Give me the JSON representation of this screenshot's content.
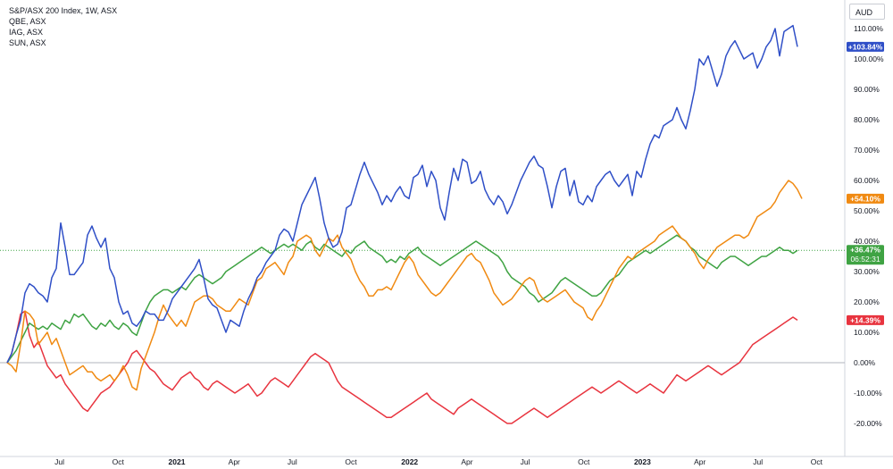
{
  "legend": {
    "items": [
      "S&P/ASX 200 Index, 1W, ASX",
      "QBE, ASX",
      "IAG, ASX",
      "SUN, ASX"
    ]
  },
  "currency": "AUD",
  "chart_data": {
    "type": "line",
    "x_start": "2020-04-10",
    "x_step_days": 7,
    "y_unit": "%",
    "ylim": [
      -25,
      115
    ],
    "grid": false,
    "legend_placement": "top-left",
    "x_ticks": [
      {
        "label": "Jul",
        "date": "2020-07-01",
        "bold": false
      },
      {
        "label": "Oct",
        "date": "2020-10-01",
        "bold": false
      },
      {
        "label": "2021",
        "date": "2021-01-01",
        "bold": true
      },
      {
        "label": "Apr",
        "date": "2021-04-01",
        "bold": false
      },
      {
        "label": "Jul",
        "date": "2021-07-01",
        "bold": false
      },
      {
        "label": "Oct",
        "date": "2021-10-01",
        "bold": false
      },
      {
        "label": "2022",
        "date": "2022-01-01",
        "bold": true
      },
      {
        "label": "Apr",
        "date": "2022-04-01",
        "bold": false
      },
      {
        "label": "Jul",
        "date": "2022-07-01",
        "bold": false
      },
      {
        "label": "Oct",
        "date": "2022-10-01",
        "bold": false
      },
      {
        "label": "2023",
        "date": "2023-01-01",
        "bold": true
      },
      {
        "label": "Apr",
        "date": "2023-04-01",
        "bold": false
      },
      {
        "label": "Jul",
        "date": "2023-07-01",
        "bold": false
      },
      {
        "label": "Oct",
        "date": "2023-10-01",
        "bold": false
      }
    ],
    "y_ticks": [
      {
        "value": 110,
        "label": "110.00%"
      },
      {
        "value": 100,
        "label": "100.00%"
      },
      {
        "value": 90,
        "label": "90.00%"
      },
      {
        "value": 80,
        "label": "80.00%"
      },
      {
        "value": 70,
        "label": "70.00%"
      },
      {
        "value": 60,
        "label": "60.00%"
      },
      {
        "value": 50,
        "label": "50.00%"
      },
      {
        "value": 40,
        "label": "40.00%"
      },
      {
        "value": 30,
        "label": "30.00%"
      },
      {
        "value": 20,
        "label": "20.00%"
      },
      {
        "value": 10,
        "label": "10.00%"
      },
      {
        "value": 0,
        "label": "0.00%"
      },
      {
        "value": -10,
        "label": "-10.00%"
      },
      {
        "value": -20,
        "label": "-20.00%"
      }
    ],
    "series": [
      {
        "name": "S&P/ASX 200 Index",
        "color": "#2f4fc7",
        "badge": "+103.84%",
        "values": [
          0,
          3,
          9,
          14,
          23,
          26,
          25,
          23,
          22,
          20,
          28,
          31,
          46,
          38,
          29,
          29,
          31,
          33,
          42,
          45,
          41,
          38,
          41,
          31,
          28,
          20,
          16,
          17,
          13,
          12,
          14,
          17,
          16,
          16,
          14,
          14,
          17,
          21,
          23,
          25,
          27,
          29,
          31,
          34,
          28,
          21,
          19,
          18,
          14,
          10,
          14,
          13,
          12,
          17,
          21,
          24,
          28,
          30,
          33,
          35,
          37,
          42,
          44,
          43,
          40,
          46,
          52,
          55,
          58,
          61,
          54,
          46,
          41,
          38,
          39,
          43,
          51,
          52,
          57,
          62,
          66,
          62,
          59,
          56,
          52,
          55,
          53,
          56,
          58,
          55,
          54,
          61,
          62,
          65,
          58,
          63,
          60,
          51,
          47,
          56,
          64,
          60,
          67,
          66,
          59,
          60,
          63,
          57,
          54,
          52,
          55,
          53,
          49,
          52,
          56,
          60,
          63,
          66,
          68,
          65,
          64,
          58,
          51,
          58,
          63,
          64,
          55,
          60,
          53,
          52,
          55,
          53,
          58,
          60,
          62,
          63,
          60,
          58,
          60,
          62,
          55,
          63,
          61,
          67,
          72,
          75,
          74,
          78,
          79,
          80,
          84,
          80,
          77,
          83,
          90,
          100,
          98,
          101,
          96,
          91,
          95,
          101,
          104,
          106,
          103,
          100,
          101,
          102,
          97,
          100,
          104,
          106,
          110,
          101,
          109,
          110,
          111,
          104
        ]
      },
      {
        "name": "QBE",
        "color": "#f08a12",
        "badge": "+54.10%",
        "values": [
          0,
          -1,
          -3,
          6,
          17,
          16,
          14,
          6,
          8,
          10,
          6,
          8,
          4,
          0,
          -4,
          -3,
          -2,
          -1,
          -3,
          -3,
          -5,
          -6,
          -5,
          -4,
          -6,
          -4,
          -1,
          -4,
          -8,
          -9,
          -2,
          2,
          6,
          10,
          15,
          19,
          16,
          14,
          12,
          14,
          12,
          16,
          20,
          21,
          22,
          22,
          21,
          19,
          18,
          17,
          17,
          19,
          21,
          20,
          19,
          23,
          27,
          28,
          31,
          32,
          33,
          31,
          29,
          33,
          35,
          40,
          41,
          42,
          41,
          37,
          35,
          38,
          41,
          40,
          42,
          38,
          36,
          34,
          30,
          27,
          25,
          22,
          22,
          24,
          24,
          25,
          24,
          27,
          30,
          33,
          35,
          33,
          29,
          27,
          25,
          23,
          22,
          23,
          25,
          27,
          29,
          31,
          33,
          35,
          36,
          34,
          33,
          30,
          27,
          23,
          21,
          19,
          20,
          21,
          23,
          25,
          27,
          28,
          27,
          23,
          21,
          20,
          21,
          22,
          23,
          24,
          22,
          20,
          19,
          18,
          15,
          14,
          17,
          19,
          22,
          25,
          28,
          31,
          33,
          35,
          34,
          36,
          37,
          38,
          39,
          40,
          42,
          43,
          44,
          45,
          43,
          41,
          40,
          38,
          36,
          33,
          31,
          34,
          36,
          38,
          39,
          40,
          41,
          42,
          42,
          41,
          42,
          45,
          48,
          49,
          50,
          51,
          53,
          56,
          58,
          60,
          59,
          57,
          54
        ]
      },
      {
        "name": "IAG",
        "color": "#3fa343",
        "badge": "+36.47%",
        "badge_time": "06:52:31",
        "values": [
          0,
          2,
          4,
          7,
          10,
          13,
          12,
          11,
          12,
          11,
          13,
          12,
          11,
          14,
          13,
          16,
          15,
          16,
          14,
          12,
          11,
          13,
          12,
          14,
          12,
          11,
          13,
          12,
          10,
          9,
          13,
          17,
          20,
          22,
          23,
          24,
          24,
          23,
          24,
          25,
          24,
          26,
          28,
          29,
          28,
          27,
          26,
          27,
          28,
          30,
          31,
          32,
          33,
          34,
          35,
          36,
          37,
          38,
          37,
          36,
          37,
          38,
          39,
          38,
          39,
          38,
          37,
          39,
          40,
          38,
          37,
          39,
          38,
          37,
          36,
          35,
          37,
          36,
          38,
          39,
          40,
          38,
          37,
          36,
          35,
          33,
          34,
          33,
          35,
          34,
          36,
          37,
          38,
          36,
          35,
          34,
          33,
          32,
          33,
          34,
          35,
          36,
          37,
          38,
          39,
          40,
          39,
          38,
          37,
          36,
          35,
          33,
          30,
          28,
          27,
          26,
          25,
          23,
          22,
          20,
          21,
          22,
          23,
          25,
          27,
          28,
          27,
          26,
          25,
          24,
          23,
          22,
          22,
          23,
          25,
          27,
          28,
          29,
          31,
          33,
          34,
          35,
          36,
          37,
          36,
          37,
          38,
          39,
          40,
          41,
          42,
          41,
          40,
          38,
          37,
          35,
          34,
          33,
          32,
          31,
          33,
          34,
          35,
          35,
          34,
          33,
          32,
          33,
          34,
          35,
          35,
          36,
          37,
          38,
          37,
          37,
          36,
          37
        ]
      },
      {
        "name": "SUN",
        "color": "#e8343f",
        "badge": "+14.39%",
        "values": [
          0,
          3,
          9,
          16,
          17,
          9,
          5,
          7,
          3,
          -1,
          -3,
          -5,
          -4,
          -7,
          -9,
          -11,
          -13,
          -15,
          -16,
          -14,
          -12,
          -10,
          -9,
          -8,
          -6,
          -4,
          -2,
          0,
          3,
          4,
          2,
          0,
          -2,
          -3,
          -5,
          -7,
          -8,
          -9,
          -7,
          -5,
          -4,
          -3,
          -5,
          -6,
          -8,
          -9,
          -7,
          -6,
          -7,
          -8,
          -9,
          -10,
          -9,
          -8,
          -7,
          -9,
          -11,
          -10,
          -8,
          -6,
          -5,
          -6,
          -7,
          -8,
          -6,
          -4,
          -2,
          0,
          2,
          3,
          2,
          1,
          0,
          -3,
          -6,
          -8,
          -9,
          -10,
          -11,
          -12,
          -13,
          -14,
          -15,
          -16,
          -17,
          -18,
          -18,
          -17,
          -16,
          -15,
          -14,
          -13,
          -12,
          -11,
          -10,
          -12,
          -13,
          -14,
          -15,
          -16,
          -17,
          -15,
          -14,
          -13,
          -12,
          -13,
          -14,
          -15,
          -16,
          -17,
          -18,
          -19,
          -20,
          -20,
          -19,
          -18,
          -17,
          -16,
          -15,
          -16,
          -17,
          -18,
          -17,
          -16,
          -15,
          -14,
          -13,
          -12,
          -11,
          -10,
          -9,
          -8,
          -9,
          -10,
          -9,
          -8,
          -7,
          -6,
          -7,
          -8,
          -9,
          -10,
          -9,
          -8,
          -7,
          -8,
          -9,
          -10,
          -8,
          -6,
          -4,
          -5,
          -6,
          -5,
          -4,
          -3,
          -2,
          -1,
          -2,
          -3,
          -4,
          -3,
          -2,
          -1,
          0,
          2,
          4,
          6,
          7,
          8,
          9,
          10,
          11,
          12,
          13,
          14,
          15,
          14
        ]
      }
    ]
  }
}
